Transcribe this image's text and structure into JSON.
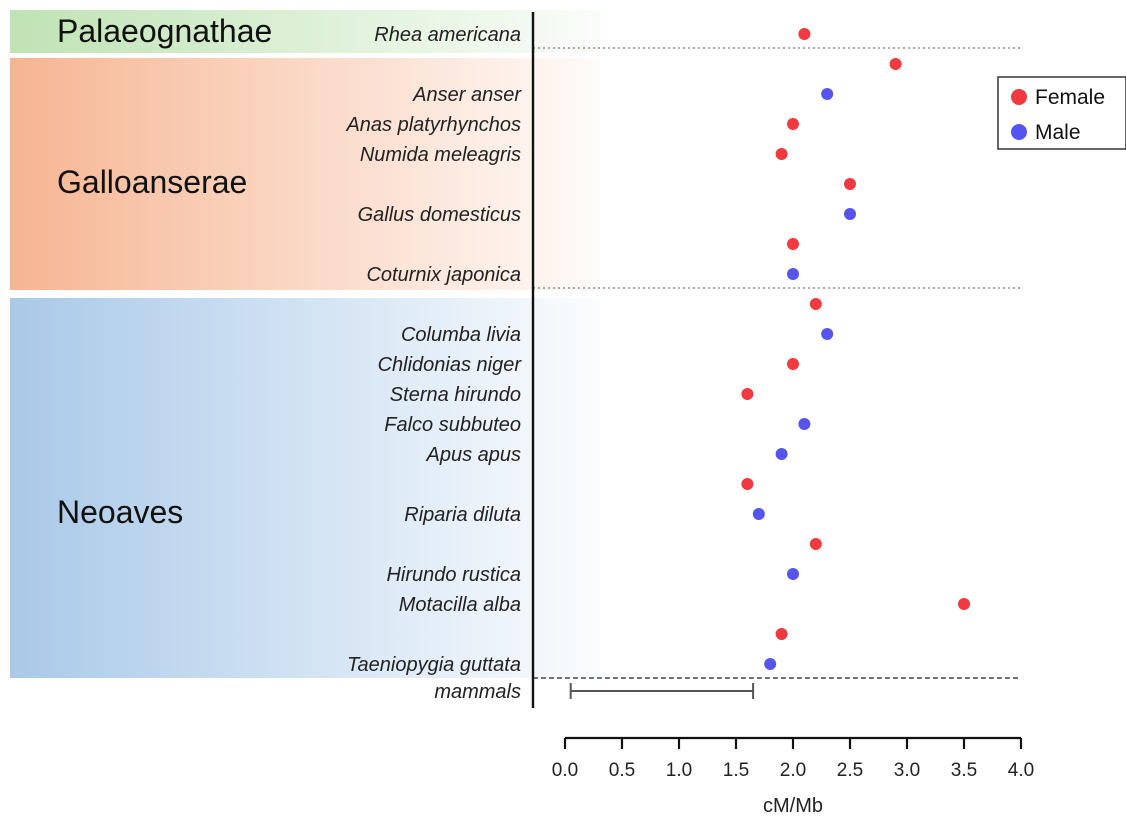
{
  "chart_data": {
    "type": "scatter",
    "xlabel": "cM/Mb",
    "xlim": [
      0,
      4.0
    ],
    "x_ticks": [
      "0.0",
      "0.5",
      "1.0",
      "1.5",
      "2.0",
      "2.5",
      "3.0",
      "3.5",
      "4.0"
    ],
    "legend_position": "top-right",
    "groups": [
      {
        "name": "Palaeognathae",
        "color": "#bfe3b4",
        "rows": [
          0,
          0
        ]
      },
      {
        "name": "Galloanserae",
        "color": "#f6b592",
        "rows": [
          1,
          7
        ]
      },
      {
        "name": "Neoaves",
        "color": "#a9c9e8",
        "rows": [
          8,
          21
        ]
      }
    ],
    "rows": [
      {
        "species": "Rhea americana",
        "sex": "Female",
        "value": 2.1
      },
      {
        "species": "",
        "sex": "Female",
        "value": 2.9
      },
      {
        "species": "Anser anser",
        "sex": "Male",
        "value": 2.3
      },
      {
        "species": "Anas platyrhynchos",
        "sex": "Female",
        "value": 2.0
      },
      {
        "species": "Numida meleagris",
        "sex": "Female",
        "value": 1.9
      },
      {
        "species": "",
        "sex": "Female",
        "value": 2.5
      },
      {
        "species": "Gallus domesticus",
        "sex": "Male",
        "value": 2.5
      },
      {
        "species": "",
        "sex": "Female",
        "value": 2.0
      },
      {
        "species": "Coturnix japonica",
        "sex": "Male",
        "value": 2.0
      },
      {
        "species": "",
        "sex": "Female",
        "value": 2.2
      },
      {
        "species": "Columba livia",
        "sex": "Male",
        "value": 2.3
      },
      {
        "species": "Chlidonias niger",
        "sex": "Female",
        "value": 2.0
      },
      {
        "species": "Sterna hirundo",
        "sex": "Female",
        "value": 1.6
      },
      {
        "species": "Falco subbuteo",
        "sex": "Male",
        "value": 2.1
      },
      {
        "species": "Apus apus",
        "sex": "Male",
        "value": 1.9
      },
      {
        "species": "",
        "sex": "Female",
        "value": 1.6
      },
      {
        "species": "Riparia diluta",
        "sex": "Male",
        "value": 1.7
      },
      {
        "species": "",
        "sex": "Female",
        "value": 2.2
      },
      {
        "species": "Hirundo rustica",
        "sex": "Male",
        "value": 2.0
      },
      {
        "species": "Motacilla alba",
        "sex": "Female",
        "value": 3.5
      },
      {
        "species": "",
        "sex": "Female",
        "value": 1.9
      },
      {
        "species": "Taeniopygia guttata",
        "sex": "Male",
        "value": 1.8
      }
    ],
    "reference_range": {
      "label": "mammals",
      "min": 0.05,
      "max": 1.65
    },
    "series": [
      {
        "name": "Female",
        "color": "#f03a3f"
      },
      {
        "name": "Male",
        "color": "#5555ee"
      }
    ]
  }
}
